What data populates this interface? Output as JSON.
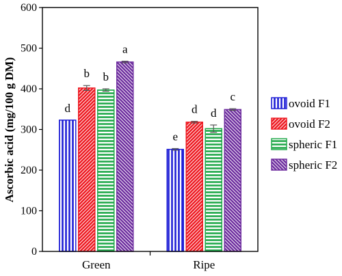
{
  "chart_data": {
    "type": "bar",
    "categories": [
      "Green",
      "Ripe"
    ],
    "ylabel": "Ascorbic acid  (mg/100 g DM)",
    "ylim": [
      0,
      600
    ],
    "yticks": [
      0,
      100,
      200,
      300,
      400,
      500,
      600
    ],
    "legend_position": "right",
    "grid": false,
    "series": [
      {
        "name": "ovoid F1",
        "values": [
          323,
          251
        ],
        "errors": [
          0,
          2
        ],
        "labels": [
          "d",
          "e"
        ],
        "color": "#1f1fd6",
        "pattern": "vertical"
      },
      {
        "name": "ovoid F2",
        "values": [
          402,
          318
        ],
        "errors": [
          6,
          2
        ],
        "labels": [
          "b",
          "d"
        ],
        "color": "#ee1c24",
        "pattern": "diag-up"
      },
      {
        "name": "spheric F1",
        "values": [
          397,
          302
        ],
        "errors": [
          3,
          9
        ],
        "labels": [
          "b",
          "d"
        ],
        "color": "#20a84a",
        "pattern": "horizontal"
      },
      {
        "name": "spheric F2",
        "values": [
          466,
          349
        ],
        "errors": [
          2,
          2
        ],
        "labels": [
          "a",
          "c"
        ],
        "color": "#7030a0",
        "pattern": "diag-down"
      }
    ]
  }
}
